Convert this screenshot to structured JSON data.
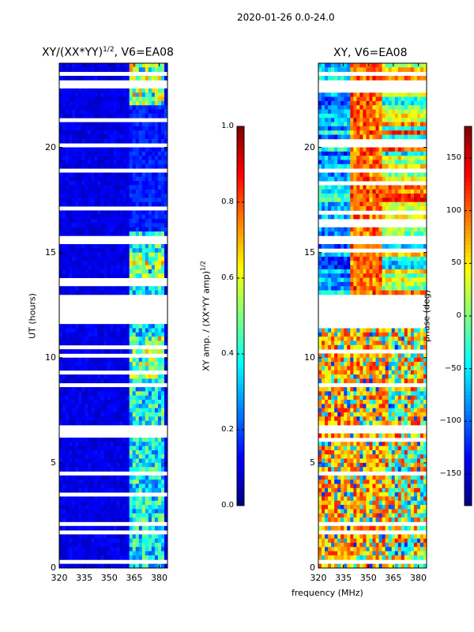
{
  "suptitle": "2020-01-26 0.0-24.0",
  "xlabel": "frequency (MHz)",
  "chart_data": [
    {
      "type": "heatmap",
      "title_main": "XY/(XX*YY)",
      "title_sup": "1/2",
      "title_rest": ", V6=EA08",
      "xlabel": "frequency (MHz)",
      "ylabel": "UT (hours)",
      "xlim": [
        320,
        385
      ],
      "ylim": [
        0,
        24
      ],
      "xticks": [
        "320",
        "335",
        "350",
        "365",
        "380"
      ],
      "xtick_values": [
        320,
        335,
        350,
        365,
        380
      ],
      "yticks": [
        "0",
        "5",
        "10",
        "15",
        "20"
      ],
      "ytick_values": [
        0,
        5,
        10,
        15,
        20
      ],
      "colormap": "jet",
      "clim": [
        0.0,
        1.0
      ],
      "background_level": 0.1,
      "bright_band_mhz": [
        362,
        383
      ],
      "bright_band_level": 0.4,
      "flagged_ut_ranges": [
        [
          0.3,
          0.4
        ],
        [
          1.55,
          1.7
        ],
        [
          1.9,
          2.2
        ],
        [
          4.5,
          4.6
        ],
        [
          6.5,
          6.7
        ],
        [
          8.65,
          8.85
        ],
        [
          11.6,
          12.9
        ],
        [
          15.5,
          15.85
        ],
        [
          18.9,
          19.0
        ],
        [
          20.1,
          20.2
        ],
        [
          22.9,
          23.1
        ],
        [
          23.35,
          23.6
        ]
      ],
      "colorbar": {
        "label_main": "XY amp. / (XX*YY amp)",
        "label_sup": "1/2",
        "ticks": [
          "0.0",
          "0.2",
          "0.4",
          "0.6",
          "0.8",
          "1.0"
        ],
        "tick_values": [
          0.0,
          0.2,
          0.4,
          0.6,
          0.8,
          1.0
        ]
      }
    },
    {
      "type": "heatmap",
      "title": "XY, V6=EA08",
      "xlabel": "frequency (MHz)",
      "xlim": [
        320,
        385
      ],
      "ylim": [
        0,
        24
      ],
      "xticks": [
        "320",
        "335",
        "350",
        "365",
        "380"
      ],
      "xtick_values": [
        320,
        335,
        350,
        365,
        380
      ],
      "yticks": [
        "0",
        "5",
        "10",
        "15",
        "20"
      ],
      "ytick_values": [
        0,
        5,
        10,
        15,
        20
      ],
      "colormap": "jet",
      "clim": [
        -180,
        180
      ],
      "flagged_ut_ranges": [
        [
          0.3,
          0.4
        ],
        [
          1.55,
          1.7
        ],
        [
          1.9,
          2.2
        ],
        [
          4.5,
          4.6
        ],
        [
          6.5,
          6.7
        ],
        [
          8.65,
          8.85
        ],
        [
          11.6,
          12.9
        ],
        [
          15.5,
          15.85
        ],
        [
          18.9,
          19.0
        ],
        [
          20.1,
          20.2
        ],
        [
          22.9,
          23.1
        ],
        [
          23.35,
          23.6
        ]
      ],
      "colorbar": {
        "label": "phase (deg)",
        "ticks": [
          "−150",
          "−100",
          "−50",
          "0",
          "50",
          "100",
          "150"
        ],
        "tick_values": [
          -150,
          -100,
          -50,
          0,
          50,
          100,
          150
        ]
      }
    }
  ]
}
